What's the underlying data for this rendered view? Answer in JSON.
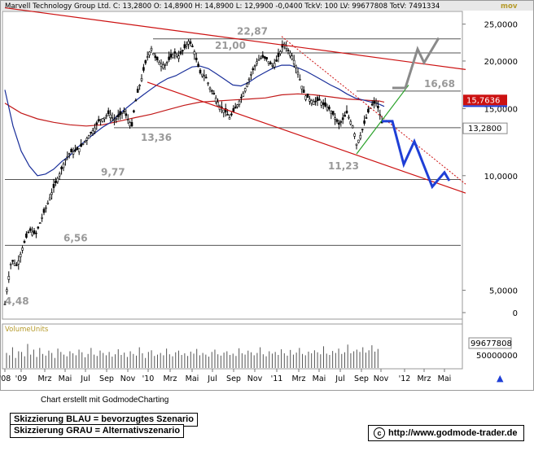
{
  "header": {
    "text": "Marvell Technology Group Ltd.  C: 13,2800  O: 14,8900  H: 14,8900  L: 12,9900  -0,0400  TckV: 100  LV: 99677808  TotV: 7491334",
    "tag": "mov"
  },
  "chart_data": {
    "type": "candlestick",
    "y_scale": "log",
    "ylim": [
      4.2,
      27.0
    ],
    "y_ticks": [
      "25,0000",
      "20,0000",
      "15,0000",
      "10,0000",
      "5,0000",
      "0"
    ],
    "x_ticks": [
      "'08",
      "'09",
      "Mrz",
      "Mai",
      "Jul",
      "Sep",
      "Nov",
      "'10",
      "Mrz",
      "Mai",
      "Jul",
      "Sep",
      "Nov",
      "'11",
      "Mrz",
      "Mai",
      "Jul",
      "Sep",
      "Nov",
      "'12",
      "Mrz",
      "Mai"
    ],
    "last_price": "13,2800",
    "marker_price": "15,7636",
    "levels": [
      {
        "label": "22,87",
        "value": 22.87
      },
      {
        "label": "21,00",
        "value": 21.0
      },
      {
        "label": "16,68",
        "value": 16.68
      },
      {
        "label": "13,36",
        "value": 13.36
      },
      {
        "label": "11,23",
        "value": 11.23
      },
      {
        "label": "9,77",
        "value": 9.77
      },
      {
        "label": "6,56",
        "value": 6.56
      },
      {
        "label": "4,48",
        "value": 4.48
      }
    ],
    "price_path": [
      [
        0,
        4.6
      ],
      [
        8,
        6.0
      ],
      [
        15,
        5.8
      ],
      [
        22,
        6.5
      ],
      [
        30,
        7.2
      ],
      [
        38,
        7.0
      ],
      [
        46,
        7.8
      ],
      [
        54,
        8.6
      ],
      [
        60,
        9.3
      ],
      [
        68,
        10.2
      ],
      [
        74,
        11.0
      ],
      [
        80,
        11.5
      ],
      [
        86,
        11.6
      ],
      [
        92,
        11.8
      ],
      [
        98,
        12.3
      ],
      [
        104,
        12.8
      ],
      [
        110,
        13.3
      ],
      [
        116,
        14.0
      ],
      [
        122,
        14.2
      ],
      [
        128,
        14.6
      ],
      [
        134,
        14.0
      ],
      [
        140,
        14.3
      ],
      [
        146,
        14.8
      ],
      [
        150,
        14.2
      ],
      [
        156,
        13.5
      ],
      [
        160,
        15.5
      ],
      [
        164,
        16.8
      ],
      [
        168,
        18.0
      ],
      [
        172,
        19.5
      ],
      [
        176,
        20.8
      ],
      [
        180,
        21.6
      ],
      [
        184,
        20.5
      ],
      [
        190,
        19.8
      ],
      [
        196,
        19.5
      ],
      [
        202,
        20.2
      ],
      [
        208,
        21.0
      ],
      [
        214,
        20.6
      ],
      [
        220,
        21.5
      ],
      [
        226,
        22.6
      ],
      [
        232,
        21.5
      ],
      [
        236,
        19.8
      ],
      [
        240,
        18.6
      ],
      [
        246,
        18.3
      ],
      [
        252,
        17.0
      ],
      [
        258,
        16.2
      ],
      [
        264,
        15.2
      ],
      [
        270,
        14.8
      ],
      [
        276,
        14.2
      ],
      [
        280,
        14.6
      ],
      [
        286,
        15.4
      ],
      [
        292,
        16.3
      ],
      [
        298,
        17.5
      ],
      [
        304,
        18.8
      ],
      [
        310,
        20.0
      ],
      [
        316,
        20.5
      ],
      [
        322,
        20.2
      ],
      [
        328,
        19.4
      ],
      [
        334,
        20.0
      ],
      [
        340,
        21.6
      ],
      [
        344,
        22.3
      ],
      [
        348,
        21.3
      ],
      [
        352,
        20.8
      ],
      [
        356,
        19.9
      ],
      [
        360,
        18.7
      ],
      [
        364,
        17.4
      ],
      [
        368,
        16.3
      ],
      [
        374,
        15.9
      ],
      [
        380,
        15.6
      ],
      [
        386,
        15.8
      ],
      [
        392,
        15.3
      ],
      [
        398,
        15.0
      ],
      [
        404,
        14.4
      ],
      [
        410,
        13.6
      ],
      [
        416,
        14.1
      ],
      [
        420,
        14.6
      ],
      [
        424,
        14.0
      ],
      [
        428,
        13.4
      ],
      [
        432,
        12.1
      ],
      [
        436,
        12.6
      ],
      [
        440,
        13.4
      ],
      [
        444,
        14.2
      ],
      [
        448,
        15.0
      ],
      [
        452,
        15.4
      ],
      [
        456,
        15.6
      ],
      [
        460,
        14.7
      ],
      [
        463,
        13.8
      ],
      [
        465,
        13.28
      ]
    ],
    "ma_blue_path": [
      [
        0,
        16.8
      ],
      [
        10,
        13.5
      ],
      [
        20,
        11.6
      ],
      [
        30,
        10.6
      ],
      [
        40,
        10.0
      ],
      [
        50,
        10.1
      ],
      [
        60,
        10.4
      ],
      [
        70,
        10.9
      ],
      [
        80,
        11.3
      ],
      [
        90,
        11.9
      ],
      [
        100,
        12.4
      ],
      [
        110,
        12.9
      ],
      [
        120,
        13.4
      ],
      [
        130,
        13.8
      ],
      [
        140,
        14.5
      ],
      [
        150,
        15.1
      ],
      [
        160,
        15.7
      ],
      [
        170,
        16.3
      ],
      [
        180,
        16.9
      ],
      [
        190,
        17.5
      ],
      [
        200,
        18.0
      ],
      [
        210,
        18.3
      ],
      [
        220,
        18.8
      ],
      [
        230,
        19.3
      ],
      [
        240,
        19.4
      ],
      [
        250,
        19.1
      ],
      [
        260,
        18.5
      ],
      [
        270,
        17.9
      ],
      [
        280,
        17.3
      ],
      [
        290,
        17.2
      ],
      [
        300,
        17.6
      ],
      [
        310,
        18.2
      ],
      [
        320,
        18.7
      ],
      [
        330,
        19.2
      ],
      [
        340,
        19.5
      ],
      [
        350,
        19.5
      ],
      [
        360,
        19.2
      ],
      [
        370,
        18.8
      ],
      [
        380,
        18.3
      ],
      [
        390,
        17.8
      ],
      [
        400,
        17.3
      ],
      [
        410,
        16.9
      ],
      [
        420,
        16.4
      ],
      [
        430,
        16.0
      ],
      [
        440,
        15.8
      ],
      [
        450,
        15.6
      ],
      [
        460,
        15.4
      ],
      [
        466,
        15.2
      ]
    ],
    "ma_red_path": [
      [
        0,
        15.5
      ],
      [
        20,
        14.6
      ],
      [
        40,
        14.1
      ],
      [
        60,
        13.8
      ],
      [
        80,
        13.6
      ],
      [
        100,
        13.5
      ],
      [
        120,
        13.6
      ],
      [
        140,
        13.9
      ],
      [
        160,
        14.2
      ],
      [
        180,
        14.5
      ],
      [
        200,
        14.9
      ],
      [
        220,
        15.3
      ],
      [
        240,
        15.6
      ],
      [
        260,
        15.7
      ],
      [
        280,
        15.8
      ],
      [
        300,
        15.9
      ],
      [
        320,
        16.0
      ],
      [
        340,
        16.3
      ],
      [
        360,
        16.4
      ],
      [
        380,
        16.3
      ],
      [
        400,
        16.1
      ],
      [
        420,
        15.9
      ],
      [
        440,
        15.8
      ],
      [
        460,
        15.7
      ],
      [
        466,
        15.6
      ]
    ],
    "trend_upper_red": [
      [
        0,
        27.6
      ],
      [
        566,
        19.0
      ]
    ],
    "trend_lower_red": [
      [
        175,
        17.6
      ],
      [
        566,
        9.0
      ]
    ],
    "trend_dotted_red": [
      [
        340,
        23.2
      ],
      [
        566,
        9.5
      ]
    ],
    "trend_green": [
      [
        432,
        11.4
      ],
      [
        496,
        17.3
      ]
    ],
    "scenario_blue": [
      [
        463,
        13.9
      ],
      [
        476,
        13.9
      ],
      [
        490,
        10.7
      ],
      [
        503,
        12.3
      ],
      [
        525,
        9.35
      ],
      [
        540,
        10.2
      ],
      [
        546,
        9.7
      ]
    ],
    "scenario_gray": [
      [
        476,
        17.0
      ],
      [
        492,
        17.0
      ],
      [
        507,
        21.5
      ],
      [
        515,
        19.8
      ],
      [
        533,
        23.0
      ]
    ],
    "volume": {
      "label": "VolumeUnits",
      "last": "99677808",
      "tick": "50000000",
      "bars": [
        0.45,
        0.38,
        0.62,
        0.3,
        0.5,
        0.48,
        0.35,
        0.72,
        0.4,
        0.55,
        0.33,
        0.6,
        0.42,
        0.37,
        0.52,
        0.45,
        0.3,
        0.58,
        0.48,
        0.4,
        0.35,
        0.5,
        0.44,
        0.38,
        0.55,
        0.47,
        0.32,
        0.42,
        0.6,
        0.4,
        0.36,
        0.52,
        0.45,
        0.38,
        0.48,
        0.34,
        0.41,
        0.56,
        0.39,
        0.46,
        0.33,
        0.5,
        0.42,
        0.37,
        0.62,
        0.44,
        0.3,
        0.48,
        0.53,
        0.36,
        0.4,
        0.45,
        0.38,
        0.58,
        0.41,
        0.35,
        0.47,
        0.52,
        0.39,
        0.44,
        0.36,
        0.49,
        0.43,
        0.57,
        0.38,
        0.45,
        0.4,
        0.34,
        0.48,
        0.55,
        0.41,
        0.37,
        0.46,
        0.5,
        0.39,
        0.43,
        0.36,
        0.59,
        0.44,
        0.4,
        0.52,
        0.47,
        0.38,
        0.45,
        0.62,
        0.41,
        0.35,
        0.5,
        0.43,
        0.48,
        0.39,
        0.56,
        0.44,
        0.37,
        0.54,
        0.4,
        0.46,
        0.6,
        0.42,
        0.38,
        0.49,
        0.44,
        0.53,
        0.47,
        0.41,
        0.65,
        0.43,
        0.39,
        0.51,
        0.45,
        0.58,
        0.42,
        0.47,
        0.7,
        0.44,
        0.5,
        0.55,
        0.48,
        0.62,
        0.46,
        0.53,
        0.68,
        0.49,
        0.57
      ]
    }
  },
  "footer": {
    "credit": "Chart erstellt mit GodmodeCharting",
    "legend_blue": "Skizzierung BLAU = bevorzugtes Szenario",
    "legend_gray": "Skizzierung GRAU = Alternativszenario",
    "url": "http://www.godmode-trader.de"
  },
  "colors": {
    "candle": "#000000",
    "ma_blue": "#1a2f9a",
    "ma_red": "#c21a1a",
    "trend_red": "#cc1111",
    "trend_green": "#2aa22a",
    "scenario_blue": "#1f3fd6",
    "scenario_gray": "#8a8a8a",
    "level_label": "#999999",
    "level_line": "#555555",
    "marker_bg": "#cc1111",
    "header_bg": "#e8e8e8"
  }
}
